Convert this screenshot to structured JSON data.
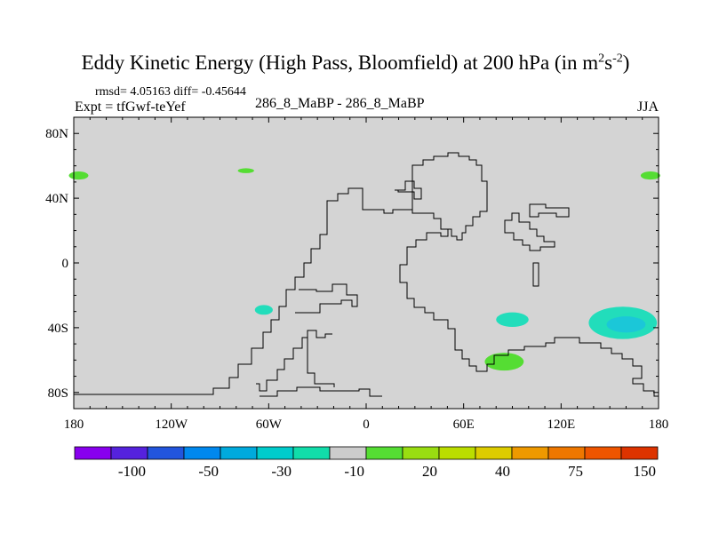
{
  "title": {
    "text": "Eddy Kinetic Energy (High Pass, Bloomfield) at 200 hPa (in m",
    "unit_sup_1": "2",
    "unit_mid": "s",
    "unit_sup_2": "-2",
    "close": ")"
  },
  "stats": "rmsd= 4.05163 diff= -0.45644",
  "expt": "Expt = tfGwf-teYef",
  "center_label": "286_8_MaBP - 286_8_MaBP",
  "season": "JJA",
  "map": {
    "lon_range": [
      -180,
      180
    ],
    "lat_range": [
      -90,
      90
    ],
    "background_color": "#d4d4d4",
    "lat_ticks": [
      {
        "lat": 80,
        "label": "80N"
      },
      {
        "lat": 40,
        "label": "40N"
      },
      {
        "lat": 0,
        "label": "0"
      },
      {
        "lat": -40,
        "label": "40S"
      },
      {
        "lat": -80,
        "label": "80S"
      }
    ],
    "lon_ticks": [
      {
        "lon": -180,
        "label": "180"
      },
      {
        "lon": -120,
        "label": "120W"
      },
      {
        "lon": -60,
        "label": "60W"
      },
      {
        "lon": 0,
        "label": "0"
      },
      {
        "lon": 60,
        "label": "60E"
      },
      {
        "lon": 120,
        "label": "120E"
      },
      {
        "lon": 180,
        "label": "180"
      }
    ],
    "anomalies": [
      {
        "name": "anomaly-nw-pacific-west-edge",
        "lon": -177,
        "lat": 54,
        "rlon": 6,
        "rlat": 2.5,
        "color": "#55dd33"
      },
      {
        "name": "anomaly-north-america",
        "lon": -74,
        "lat": 57,
        "rlon": 5,
        "rlat": 1.5,
        "color": "#55dd33"
      },
      {
        "name": "anomaly-nw-pacific-east-edge",
        "lon": 175,
        "lat": 54,
        "rlon": 6,
        "rlat": 2.5,
        "color": "#55dd33"
      },
      {
        "name": "anomaly-south-atlantic",
        "lon": -63,
        "lat": -29,
        "rlon": 5.5,
        "rlat": 3,
        "color": "#22ddbb"
      },
      {
        "name": "anomaly-south-indian",
        "lon": 90,
        "lat": -35,
        "rlon": 10,
        "rlat": 4.5,
        "color": "#22ddbb"
      },
      {
        "name": "anomaly-south-indian-green",
        "lon": 85,
        "lat": -61,
        "rlon": 12,
        "rlat": 5.5,
        "color": "#55dd33"
      },
      {
        "name": "anomaly-south-pacific",
        "lon": 158,
        "lat": -37,
        "rlon": 21,
        "rlat": 10,
        "color": "#22ddbb"
      },
      {
        "name": "anomaly-south-pacific-core",
        "lon": 160,
        "lat": -38,
        "rlon": 12,
        "rlat": 5,
        "color": "#1bc7d8"
      }
    ]
  },
  "colorbar": {
    "colors": [
      "#8800ee",
      "#5522dd",
      "#2255dd",
      "#0088ee",
      "#00aadd",
      "#00cccc",
      "#11ddaa",
      "#cccccc",
      "#55dd33",
      "#99dd11",
      "#bbdd00",
      "#ddcc00",
      "#ee9900",
      "#ee7700",
      "#ee5500",
      "#dd3300"
    ],
    "labels": [
      {
        "boundary": 2,
        "text": "-100"
      },
      {
        "boundary": 4,
        "text": "-50"
      },
      {
        "boundary": 6,
        "text": "-30"
      },
      {
        "boundary": 8,
        "text": "-10"
      },
      {
        "boundary": 10,
        "text": "20"
      },
      {
        "boundary": 12,
        "text": "40"
      },
      {
        "boundary": 14,
        "text": "75"
      },
      {
        "boundary": 16,
        "text": "150"
      }
    ]
  }
}
